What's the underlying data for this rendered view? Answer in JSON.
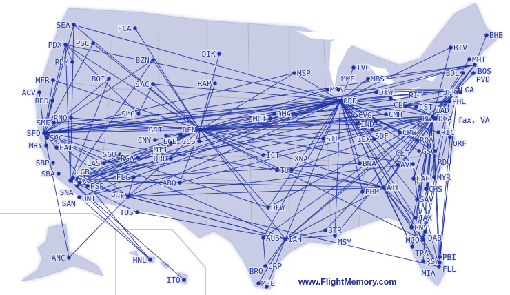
{
  "map": {
    "credit": "www.FlightMemory.com",
    "colors": {
      "land": "#c8cce4",
      "route": "#1e32a8",
      "label": "#2336a8",
      "border": "#a9acbf"
    },
    "extra_label": "fax, VA",
    "airports": [
      "SEA",
      "FCA",
      "PSC",
      "PDX",
      "DIK",
      "BZN",
      "RDM",
      "BOI",
      "MFR",
      "JAC",
      "RAP",
      "ACV",
      "RDD",
      "SLC",
      "RNO",
      "SMF",
      "SFO",
      "SJC",
      "MRY",
      "FAT",
      "DEN",
      "CNY",
      "GJT",
      "EGE",
      "MTJ",
      "COS",
      "SBP",
      "SBA",
      "LAX",
      "LGB",
      "SNA",
      "PSP",
      "ONT",
      "SAN",
      "SGU",
      "PGA",
      "LAS",
      "DRO",
      "FLG",
      "ABQ",
      "PHX",
      "TUS",
      "ANC",
      "HNL",
      "ITO",
      "MSP",
      "TVC",
      "MBS",
      "MSN",
      "MKE",
      "ORD",
      "DTW",
      "CLE",
      "PIT",
      "JST",
      "BTV",
      "BHB",
      "MHT",
      "BOS",
      "BDL",
      "PVD",
      "LGA",
      "PHL",
      "BWI",
      "IAD",
      "DCA",
      "RIC",
      "ORF",
      "CMH",
      "OMA",
      "MCI",
      "IND",
      "SDF",
      "CVG",
      "LEX",
      "CRW",
      "ROA",
      "GSO",
      "RDU",
      "AVL",
      "CLT",
      "BNA",
      "STL",
      "ICT",
      "TUL",
      "XNA",
      "DFW",
      "BHM",
      "ATL",
      "CAE",
      "CHS",
      "MYR",
      "SAV",
      "JAX",
      "GNV",
      "DAB",
      "MCO",
      "TPA",
      "RSW",
      "PBI",
      "FLL",
      "MIA",
      "BTR",
      "MSY",
      "AUS",
      "IAH",
      "CRP",
      "MFE",
      "BRO"
    ],
    "routes": [
      [
        "SEA",
        "DEN"
      ],
      [
        "SEA",
        "ORD"
      ],
      [
        "SEA",
        "SFO"
      ],
      [
        "SEA",
        "LAX"
      ],
      [
        "PDX",
        "SFO"
      ],
      [
        "PDX",
        "DEN"
      ],
      [
        "PDX",
        "LAX"
      ],
      [
        "PDX",
        "SLC"
      ],
      [
        "PDX",
        "RDM"
      ],
      [
        "PDX",
        "ORD"
      ],
      [
        "FCA",
        "DEN"
      ],
      [
        "PSC",
        "DEN"
      ],
      [
        "PSC",
        "SFO"
      ],
      [
        "BZN",
        "DEN"
      ],
      [
        "BZN",
        "SFO"
      ],
      [
        "BZN",
        "LAX"
      ],
      [
        "BOI",
        "SFO"
      ],
      [
        "BOI",
        "LAX"
      ],
      [
        "JAC",
        "DEN"
      ],
      [
        "JAC",
        "ORD"
      ],
      [
        "JAC",
        "SLC"
      ],
      [
        "DIK",
        "DEN"
      ],
      [
        "RAP",
        "DEN"
      ],
      [
        "MFR",
        "SFO"
      ],
      [
        "MFR",
        "DEN"
      ],
      [
        "ACV",
        "SFO"
      ],
      [
        "RDD",
        "SFO"
      ],
      [
        "RNO",
        "SFO"
      ],
      [
        "RNO",
        "DEN"
      ],
      [
        "SMF",
        "ORD"
      ],
      [
        "SMF",
        "DEN"
      ],
      [
        "SFO",
        "ORD"
      ],
      [
        "SFO",
        "IAD"
      ],
      [
        "SFO",
        "DEN"
      ],
      [
        "SFO",
        "LGA"
      ],
      [
        "SFO",
        "BOS"
      ],
      [
        "SFO",
        "PHL"
      ],
      [
        "SFO",
        "ATL"
      ],
      [
        "SFO",
        "IAH"
      ],
      [
        "SFO",
        "LAS"
      ],
      [
        "SFO",
        "PHX"
      ],
      [
        "SFO",
        "HNL"
      ],
      [
        "SFO",
        "ANC"
      ],
      [
        "SFO",
        "DFW"
      ],
      [
        "SFO",
        "MSP"
      ],
      [
        "SFO",
        "DTW"
      ],
      [
        "SFO",
        "CLE"
      ],
      [
        "LAX",
        "ORD"
      ],
      [
        "LAX",
        "IAD"
      ],
      [
        "LAX",
        "DEN"
      ],
      [
        "LAX",
        "ATL"
      ],
      [
        "LAX",
        "IAH"
      ],
      [
        "LAX",
        "HNL"
      ],
      [
        "LAX",
        "ITO"
      ],
      [
        "LAX",
        "MIA"
      ],
      [
        "LAX",
        "ABQ"
      ],
      [
        "LAX",
        "DRO"
      ],
      [
        "LAX",
        "SGU"
      ],
      [
        "LAX",
        "PGA"
      ],
      [
        "LAX",
        "TUS"
      ],
      [
        "LAX",
        "BNA"
      ],
      [
        "LAX",
        "JFK"
      ],
      [
        "SNA",
        "ORD"
      ],
      [
        "SNA",
        "DEN"
      ],
      [
        "SAN",
        "ORD"
      ],
      [
        "SAN",
        "IAD"
      ],
      [
        "SAN",
        "HNL"
      ],
      [
        "PSP",
        "ORD"
      ],
      [
        "PSP",
        "DEN"
      ],
      [
        "ONT",
        "DEN"
      ],
      [
        "LAS",
        "DEN"
      ],
      [
        "LAS",
        "ORD"
      ],
      [
        "LAS",
        "IAD"
      ],
      [
        "PHX",
        "ORD"
      ],
      [
        "PHX",
        "ANC"
      ],
      [
        "PHX",
        "ATL"
      ],
      [
        "PHX",
        "DEN"
      ],
      [
        "PHX",
        "IAH"
      ],
      [
        "PHX",
        "FLG"
      ],
      [
        "PHX",
        "CLT"
      ],
      [
        "TUS",
        "IAH"
      ],
      [
        "ABQ",
        "DEN"
      ],
      [
        "ABQ",
        "IAD"
      ],
      [
        "DEN",
        "ORD"
      ],
      [
        "DEN",
        "IAD"
      ],
      [
        "DEN",
        "LGA"
      ],
      [
        "DEN",
        "ATL"
      ],
      [
        "DEN",
        "IAH"
      ],
      [
        "DEN",
        "BOS"
      ],
      [
        "DEN",
        "MCO"
      ],
      [
        "DEN",
        "DFW"
      ],
      [
        "DEN",
        "MSP"
      ],
      [
        "DEN",
        "CNY"
      ],
      [
        "DEN",
        "GJT"
      ],
      [
        "DEN",
        "COS"
      ],
      [
        "DEN",
        "ICT"
      ],
      [
        "DEN",
        "TUL"
      ],
      [
        "DEN",
        "STL"
      ],
      [
        "DEN",
        "CLT"
      ],
      [
        "DEN",
        "PHL"
      ],
      [
        "ORD",
        "LGA"
      ],
      [
        "ORD",
        "BOS"
      ],
      [
        "ORD",
        "IAD"
      ],
      [
        "ORD",
        "ATL"
      ],
      [
        "ORD",
        "MCO"
      ],
      [
        "ORD",
        "TPA"
      ],
      [
        "ORD",
        "MIA"
      ],
      [
        "ORD",
        "JAX"
      ],
      [
        "ORD",
        "IAH"
      ],
      [
        "ORD",
        "AUS"
      ],
      [
        "ORD",
        "MSY"
      ],
      [
        "ORD",
        "DFW"
      ],
      [
        "ORD",
        "BNA"
      ],
      [
        "ORD",
        "BTV"
      ],
      [
        "ORD",
        "TVC"
      ],
      [
        "ORD",
        "MBS"
      ],
      [
        "ORD",
        "MSP"
      ],
      [
        "ORD",
        "CLT"
      ],
      [
        "ORD",
        "RDU"
      ],
      [
        "ORD",
        "SAV"
      ],
      [
        "ORD",
        "BHM"
      ],
      [
        "ORD",
        "PHL"
      ],
      [
        "IAD",
        "ATL"
      ],
      [
        "IAD",
        "MCO"
      ],
      [
        "IAD",
        "TPA"
      ],
      [
        "IAD",
        "MIA"
      ],
      [
        "IAD",
        "JAX"
      ],
      [
        "IAD",
        "IAH"
      ],
      [
        "IAD",
        "AUS"
      ],
      [
        "IAD",
        "BOS"
      ],
      [
        "IAD",
        "BTV"
      ],
      [
        "IAD",
        "LGA"
      ],
      [
        "IAD",
        "PBI"
      ],
      [
        "IAD",
        "RSW"
      ],
      [
        "IAD",
        "CHS"
      ],
      [
        "IAD",
        "SAV"
      ],
      [
        "IAD",
        "MYR"
      ],
      [
        "IAD",
        "CAE"
      ],
      [
        "IAD",
        "XNA"
      ],
      [
        "IAD",
        "DFW"
      ],
      [
        "IAD",
        "DAB"
      ],
      [
        "IAD",
        "GNV"
      ],
      [
        "IAD",
        "MSY"
      ],
      [
        "IAD",
        "BTR"
      ],
      [
        "ATL",
        "MCO"
      ],
      [
        "ATL",
        "TPA"
      ],
      [
        "ATL",
        "JAX"
      ],
      [
        "ATL",
        "GNV"
      ],
      [
        "ATL",
        "MIA"
      ],
      [
        "ATL",
        "IAH"
      ],
      [
        "ATL",
        "LGA"
      ],
      [
        "ATL",
        "XNA"
      ],
      [
        "ATL",
        "BOS"
      ],
      [
        "IAH",
        "CRP"
      ],
      [
        "IAH",
        "MFE"
      ],
      [
        "IAH",
        "BRO"
      ],
      [
        "IAH",
        "MSY"
      ],
      [
        "IAH",
        "BTR"
      ],
      [
        "IAH",
        "LGA"
      ],
      [
        "AUS",
        "CRP"
      ],
      [
        "BHB",
        "BOS"
      ],
      [
        "MHT",
        "IAD"
      ],
      [
        "PVD",
        "IAD"
      ],
      [
        "BDL",
        "IAD"
      ],
      [
        "BOS",
        "MBS"
      ],
      [
        "LGA",
        "MKE"
      ],
      [
        "LGA",
        "DTW"
      ],
      [
        "LGA",
        "MCO"
      ],
      [
        "LGA",
        "FLL"
      ],
      [
        "LGA",
        "MIA"
      ],
      [
        "PHL",
        "MCO"
      ],
      [
        "PHL",
        "TPA"
      ],
      [
        "CLT",
        "MCO"
      ],
      [
        "CLT",
        "MIA"
      ],
      [
        "CLE",
        "IAD"
      ],
      [
        "PIT",
        "IAD"
      ],
      [
        "JST",
        "IAD"
      ],
      [
        "RIC",
        "ORD"
      ],
      [
        "ORF",
        "PBI"
      ],
      [
        "GSO",
        "ORD"
      ],
      [
        "AVL",
        "ORD"
      ],
      [
        "ROA",
        "ORD"
      ],
      [
        "CRW",
        "ORD"
      ],
      [
        "LEX",
        "ORD"
      ],
      [
        "SDF",
        "DEN"
      ],
      [
        "IND",
        "DEN"
      ],
      [
        "CMH",
        "DEN"
      ],
      [
        "CVG",
        "DEN"
      ],
      [
        "OMA",
        "ORD"
      ],
      [
        "MCI",
        "ORD"
      ],
      [
        "STL",
        "ORD"
      ],
      [
        "MSN",
        "DEN"
      ],
      [
        "DCA",
        "BOS"
      ]
    ]
  }
}
